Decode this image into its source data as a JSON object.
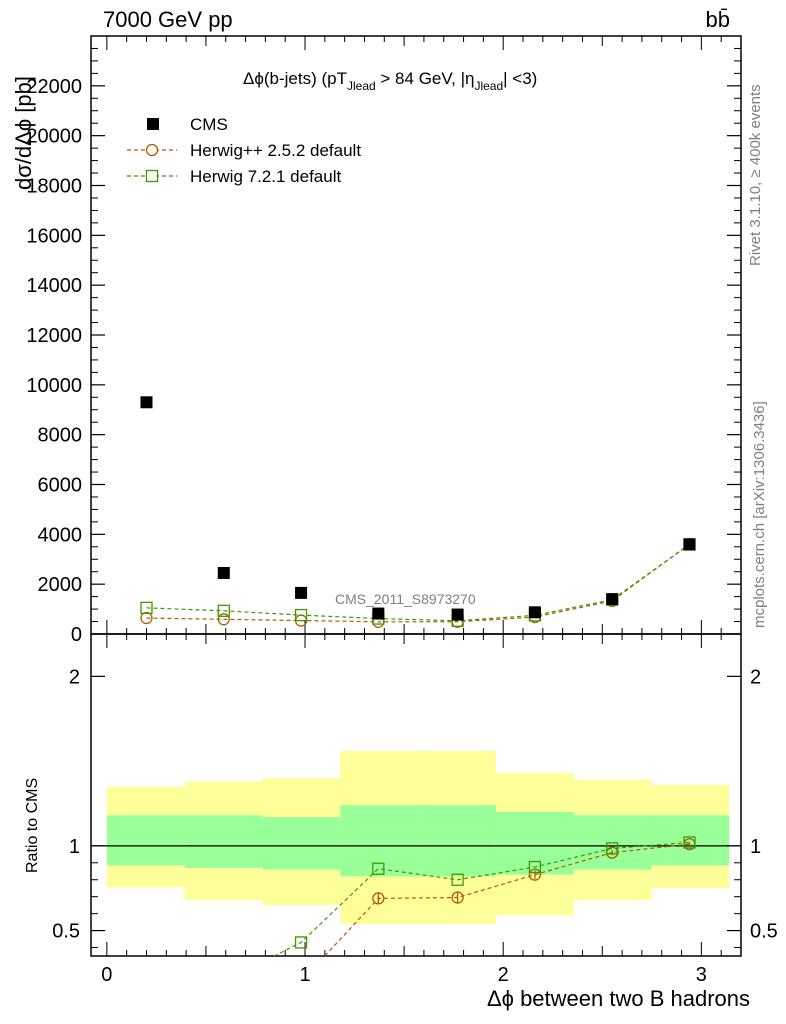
{
  "header": {
    "energy_label": "7000 GeV pp",
    "process_label": "bb̄"
  },
  "side": {
    "rivet_label": "Rivet 3.1.10, ≥ 400k events",
    "mcplots_label": "mcplots.cern.ch [arXiv:1306.3436]"
  },
  "watermark": "CMS_2011_S8973270",
  "cut_label": "Δϕ(b-jets) (pT_Jlead > 84 GeV, |η_Jlead| <3)",
  "chart_data": [
    {
      "type": "scatter",
      "panel": "main",
      "title": "Δϕ(b-jets) (pT_Jlead > 84 GeV, |η_Jlead| <3)",
      "ylabel": "dσ/dΔϕ [pb]",
      "xlim": [
        -0.08,
        3.2
      ],
      "ylim": [
        0,
        24000
      ],
      "y_ticks": [
        2000,
        4000,
        6000,
        8000,
        10000,
        12000,
        14000,
        16000,
        18000,
        20000,
        22000
      ],
      "y_tick_labels": [
        "2000",
        "4000",
        "6000",
        "8000",
        "10000",
        "12000",
        "14000",
        "16000",
        "18000",
        "20000",
        "22000"
      ],
      "x": [
        0.2,
        0.59,
        0.98,
        1.37,
        1.77,
        2.16,
        2.55,
        2.94
      ],
      "series": [
        {
          "name": "CMS",
          "color": "#000000",
          "marker": "filled-square",
          "values": [
            9300,
            2450,
            1650,
            820,
            780,
            870,
            1400,
            3600
          ]
        },
        {
          "name": "Herwig++ 2.5.2 default",
          "color": "#b35a00",
          "marker": "open-circle",
          "values": [
            640,
            590,
            540,
            490,
            490,
            680,
            1330,
            3610
          ]
        },
        {
          "name": "Herwig 7.2.1 default",
          "color": "#3a9a00",
          "marker": "open-square",
          "values": [
            1050,
            930,
            760,
            620,
            530,
            750,
            1380,
            3590
          ]
        }
      ],
      "legend_position": "top-left"
    },
    {
      "type": "line",
      "panel": "ratio",
      "ylabel": "Ratio to CMS",
      "xlabel": "Δϕ between two B hadrons",
      "xlim": [
        -0.08,
        3.2
      ],
      "ylim": [
        0.35,
        2.25
      ],
      "x_ticks": [
        0,
        1,
        2,
        3
      ],
      "x_tick_labels": [
        "0",
        "1",
        "2",
        "3"
      ],
      "y_ticks": [
        0.5,
        1,
        2
      ],
      "y_tick_labels": [
        "0.5",
        "1",
        "2"
      ],
      "bins": [
        0.0,
        0.393,
        0.785,
        1.178,
        1.571,
        1.963,
        2.356,
        2.749,
        3.14
      ],
      "band_outer": {
        "color": "#ffff99",
        "low": [
          0.755,
          0.68,
          0.65,
          0.54,
          0.54,
          0.59,
          0.68,
          0.75
        ],
        "high": [
          1.35,
          1.38,
          1.4,
          1.56,
          1.56,
          1.43,
          1.39,
          1.36
        ]
      },
      "band_inner": {
        "color": "#99ff99",
        "low": [
          0.885,
          0.87,
          0.86,
          0.82,
          0.82,
          0.83,
          0.86,
          0.885
        ],
        "high": [
          1.18,
          1.18,
          1.17,
          1.24,
          1.24,
          1.2,
          1.18,
          1.18
        ]
      },
      "series": [
        {
          "name": "Herwig++ 2.5.2 default",
          "color": "#b35a00",
          "marker": "open-circle",
          "x": [
            0.98,
            1.37,
            1.77,
            2.16,
            2.55,
            2.94
          ],
          "values": [
            0.2,
            0.69,
            0.695,
            0.83,
            0.96,
            1.01
          ],
          "errors": [
            0,
            0.035,
            0.03,
            0.025,
            0.015,
            0.01
          ]
        },
        {
          "name": "Herwig 7.2.1 default",
          "color": "#3a9a00",
          "marker": "open-square",
          "x": [
            0.59,
            0.98,
            1.37,
            1.77,
            2.16,
            2.55,
            2.94
          ],
          "values": [
            0.2,
            0.43,
            0.865,
            0.8,
            0.875,
            0.985,
            1.02
          ],
          "errors": [
            0,
            0,
            0,
            0,
            0,
            0,
            0
          ]
        }
      ]
    }
  ]
}
